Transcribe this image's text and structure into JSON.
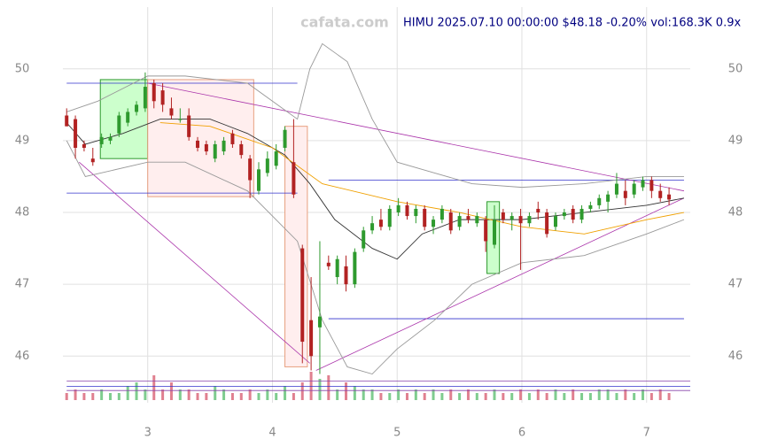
{
  "chart_data": {
    "type": "candlestick",
    "watermark": "cafata.com",
    "title": "HIMU 2025.07.10 00:00:00 $48.18 -0.20% vol:168.3K 0.9x",
    "xlim": [
      2.32,
      7.35
    ],
    "ylim": [
      45.35,
      50.86
    ],
    "xticks": [
      3,
      4,
      5,
      6,
      7
    ],
    "yticks": [
      46,
      47,
      48,
      49,
      50
    ],
    "grid": true,
    "up_color": "#2e9a2e",
    "down_color": "#b22222",
    "x": [
      2.35,
      2.42,
      2.49,
      2.56,
      2.63,
      2.7,
      2.77,
      2.84,
      2.91,
      2.98,
      3.05,
      3.12,
      3.19,
      3.26,
      3.33,
      3.4,
      3.47,
      3.54,
      3.61,
      3.68,
      3.75,
      3.82,
      3.89,
      3.96,
      4.03,
      4.1,
      4.17,
      4.24,
      4.31,
      4.38,
      4.45,
      4.52,
      4.59,
      4.66,
      4.73,
      4.8,
      4.87,
      4.94,
      5.01,
      5.08,
      5.15,
      5.22,
      5.29,
      5.36,
      5.43,
      5.5,
      5.57,
      5.64,
      5.71,
      5.78,
      5.85,
      5.92,
      5.99,
      6.06,
      6.13,
      6.2,
      6.27,
      6.34,
      6.41,
      6.48,
      6.55,
      6.62,
      6.69,
      6.76,
      6.83,
      6.9,
      6.97,
      7.04,
      7.11,
      7.18
    ],
    "open": [
      49.35,
      49.3,
      48.95,
      48.75,
      48.95,
      49.0,
      49.1,
      49.25,
      49.4,
      49.45,
      49.8,
      49.7,
      49.45,
      49.3,
      49.35,
      49.0,
      48.95,
      48.75,
      48.85,
      49.1,
      48.95,
      48.75,
      48.3,
      48.55,
      48.65,
      48.9,
      48.7,
      47.5,
      46.5,
      46.4,
      47.3,
      47.1,
      47.25,
      47.0,
      47.5,
      47.75,
      47.9,
      47.8,
      48.0,
      48.1,
      47.95,
      48.05,
      47.8,
      47.9,
      48.0,
      47.8,
      47.95,
      47.85,
      47.9,
      47.55,
      48.0,
      47.9,
      47.95,
      47.85,
      48.05,
      48.0,
      47.8,
      47.95,
      48.05,
      47.9,
      48.05,
      48.1,
      48.15,
      48.25,
      48.3,
      48.25,
      48.35,
      48.45,
      48.3,
      48.25
    ],
    "high": [
      49.45,
      49.35,
      49.0,
      48.9,
      49.1,
      49.1,
      49.4,
      49.45,
      49.55,
      49.95,
      49.85,
      49.8,
      49.6,
      49.45,
      49.45,
      49.05,
      49.0,
      49.0,
      49.05,
      49.15,
      49.0,
      48.8,
      48.7,
      48.85,
      48.95,
      49.2,
      49.3,
      47.55,
      47.1,
      47.6,
      47.4,
      47.4,
      47.4,
      47.5,
      47.8,
      47.95,
      48.05,
      48.1,
      48.2,
      48.15,
      48.1,
      48.1,
      47.95,
      48.1,
      48.05,
      48.0,
      48.05,
      48.0,
      47.95,
      48.1,
      48.05,
      48.0,
      48.05,
      48.0,
      48.15,
      48.05,
      48.0,
      48.05,
      48.1,
      48.1,
      48.15,
      48.25,
      48.3,
      48.55,
      48.45,
      48.45,
      48.5,
      48.5,
      48.4,
      48.35
    ],
    "low": [
      49.2,
      48.75,
      48.85,
      48.65,
      48.9,
      48.95,
      49.05,
      49.2,
      49.35,
      49.4,
      49.45,
      49.4,
      49.3,
      49.25,
      49.0,
      48.85,
      48.8,
      48.7,
      48.8,
      48.9,
      48.75,
      48.2,
      48.25,
      48.5,
      48.6,
      48.85,
      48.2,
      45.9,
      45.8,
      45.75,
      47.2,
      47.0,
      46.9,
      46.95,
      47.45,
      47.7,
      47.75,
      47.75,
      47.95,
      47.9,
      47.85,
      47.75,
      47.7,
      47.85,
      47.7,
      47.75,
      47.85,
      47.8,
      47.45,
      47.5,
      47.85,
      47.75,
      47.2,
      47.8,
      47.9,
      47.65,
      47.75,
      47.9,
      47.85,
      47.85,
      48.0,
      48.05,
      48.0,
      48.2,
      48.1,
      48.2,
      48.3,
      48.2,
      48.15,
      48.1
    ],
    "close": [
      49.2,
      48.9,
      48.9,
      48.7,
      49.05,
      49.05,
      49.35,
      49.4,
      49.5,
      49.75,
      49.55,
      49.5,
      49.35,
      49.3,
      49.05,
      48.9,
      48.85,
      48.95,
      49.0,
      48.95,
      48.8,
      48.45,
      48.6,
      48.75,
      48.85,
      49.15,
      48.25,
      46.2,
      46.0,
      46.55,
      47.25,
      47.35,
      47.0,
      47.45,
      47.75,
      47.85,
      47.8,
      48.05,
      48.1,
      47.95,
      48.05,
      47.8,
      47.9,
      48.05,
      47.75,
      47.95,
      47.9,
      47.95,
      47.6,
      47.9,
      47.9,
      47.95,
      47.85,
      47.95,
      48.0,
      47.7,
      47.95,
      48.0,
      47.9,
      48.05,
      48.1,
      48.2,
      48.25,
      48.4,
      48.2,
      48.4,
      48.45,
      48.3,
      48.2,
      48.18
    ],
    "volume": [
      2,
      3,
      2,
      2,
      3,
      2,
      2,
      4,
      5,
      3,
      7,
      3,
      5,
      3,
      3,
      2,
      2,
      4,
      3,
      2,
      2,
      3,
      2,
      3,
      2,
      4,
      2,
      5,
      8,
      6,
      7,
      3,
      5,
      4,
      3,
      3,
      2,
      2,
      3,
      2,
      3,
      2,
      3,
      2,
      3,
      2,
      3,
      2,
      2,
      3,
      2,
      2,
      3,
      2,
      3,
      2,
      3,
      2,
      3,
      2,
      2,
      3,
      3,
      2,
      3,
      2,
      3,
      2,
      3,
      2
    ],
    "vlim": [
      0,
      10
    ],
    "overlays": [
      {
        "color": "#999999",
        "x": [
          2.35,
          2.6,
          3.0,
          3.3,
          3.8,
          4.2,
          4.3,
          4.4,
          4.6,
          4.8,
          5.0,
          5.3,
          5.6,
          6.0,
          6.5,
          7.0,
          7.3
        ],
        "values": [
          49.4,
          49.55,
          49.9,
          49.9,
          49.8,
          49.3,
          50.0,
          50.35,
          50.1,
          49.3,
          48.7,
          48.55,
          48.4,
          48.35,
          48.4,
          48.5,
          48.5
        ]
      },
      {
        "color": "#999999",
        "x": [
          2.35,
          2.5,
          3.0,
          3.3,
          3.8,
          4.2,
          4.4,
          4.6,
          4.8,
          5.0,
          5.3,
          5.6,
          6.0,
          6.5,
          7.0,
          7.3
        ],
        "values": [
          49.0,
          48.5,
          48.7,
          48.7,
          48.3,
          47.6,
          46.5,
          45.85,
          45.75,
          46.1,
          46.5,
          47.0,
          47.3,
          47.4,
          47.7,
          47.9
        ]
      },
      {
        "color": "#333333",
        "x": [
          2.35,
          2.5,
          2.8,
          3.1,
          3.5,
          3.8,
          4.1,
          4.3,
          4.5,
          4.8,
          5.0,
          5.2,
          5.5,
          6.0,
          6.5,
          7.0,
          7.3
        ],
        "values": [
          49.25,
          48.95,
          49.1,
          49.3,
          49.3,
          49.1,
          48.8,
          48.4,
          47.9,
          47.5,
          47.35,
          47.7,
          47.9,
          47.9,
          48.0,
          48.1,
          48.2
        ]
      },
      {
        "color": "#f0a000",
        "x": [
          3.1,
          3.5,
          4.0,
          4.4,
          5.0,
          5.5,
          6.0,
          6.5,
          7.0,
          7.3
        ],
        "values": [
          49.25,
          49.2,
          48.9,
          48.4,
          48.15,
          48.0,
          47.8,
          47.7,
          47.9,
          48.0
        ]
      }
    ],
    "levels": [
      {
        "y": 49.8,
        "x": [
          2.35,
          4.2
        ],
        "color": "#3333cc"
      },
      {
        "y": 48.27,
        "x": [
          2.35,
          4.2
        ],
        "color": "#3333cc"
      },
      {
        "y": 48.45,
        "x": [
          4.45,
          7.3
        ],
        "color": "#3333cc"
      },
      {
        "y": 46.52,
        "x": [
          4.45,
          7.3
        ],
        "color": "#3333cc"
      },
      {
        "y": 45.65,
        "x": [
          2.35,
          7.35
        ],
        "color": "#8844aa"
      },
      {
        "y": 45.58,
        "x": [
          2.35,
          7.35
        ],
        "color": "#3333cc"
      },
      {
        "y": 45.52,
        "x": [
          2.35,
          7.35
        ],
        "color": "#8844aa"
      }
    ],
    "trendlines": [
      {
        "x": [
          2.45,
          4.3
        ],
        "y": [
          48.7,
          45.9
        ],
        "color": "#aa33aa"
      },
      {
        "x": [
          4.35,
          7.3
        ],
        "y": [
          45.8,
          48.2
        ],
        "color": "#aa33aa"
      },
      {
        "x": [
          3.0,
          7.3
        ],
        "y": [
          49.8,
          48.3
        ],
        "color": "#aa33aa"
      }
    ],
    "boxes": [
      {
        "x": [
          2.62,
          3.0
        ],
        "y": [
          48.75,
          49.85
        ],
        "fill": "#ccffcc",
        "stroke": "#2e9a2e"
      },
      {
        "x": [
          3.0,
          3.85
        ],
        "y": [
          48.22,
          49.85
        ],
        "fill": "#ffeeee",
        "stroke": "#e8a080"
      },
      {
        "x": [
          4.1,
          4.28
        ],
        "y": [
          45.85,
          49.2
        ],
        "fill": "#ffeeee",
        "stroke": "#e8a080"
      },
      {
        "x": [
          5.72,
          5.82
        ],
        "y": [
          47.15,
          48.15
        ],
        "fill": "#ccffcc",
        "stroke": "#2e9a2e"
      }
    ]
  }
}
